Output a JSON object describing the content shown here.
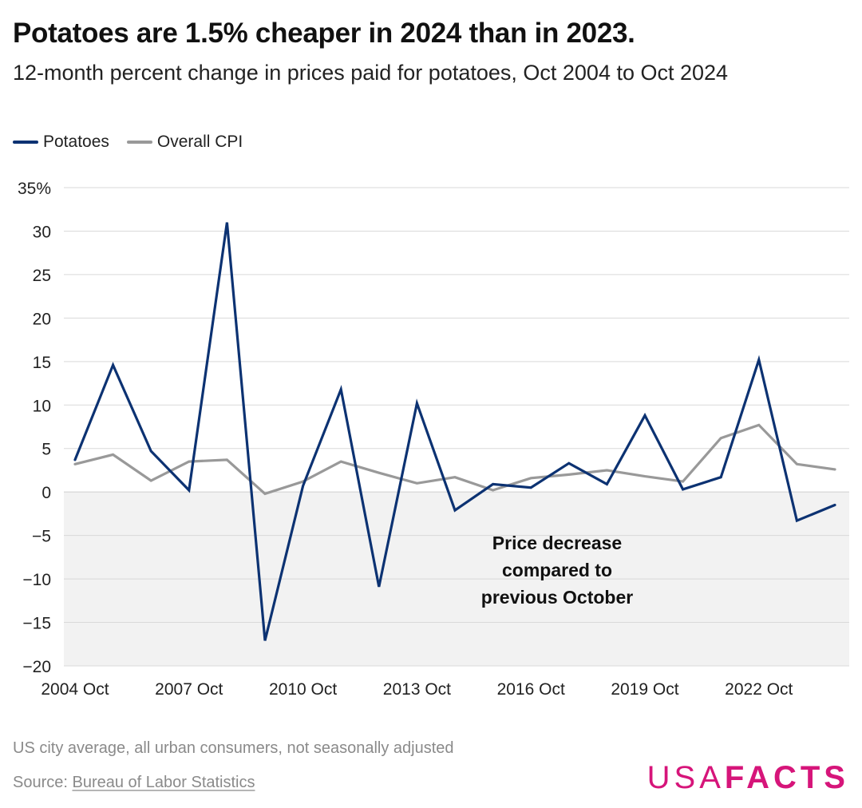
{
  "header": {
    "title": "Potatoes are 1.5% cheaper in 2024 than in 2023.",
    "subtitle": "12-month percent change in prices paid for potatoes, Oct 2004 to Oct 2024"
  },
  "legend": [
    {
      "label": "Potatoes",
      "color": "#0c3272"
    },
    {
      "label": "Overall CPI",
      "color": "#999999"
    }
  ],
  "annotation": {
    "lines": [
      "Price decrease",
      "compared to",
      "previous October"
    ]
  },
  "footnote": "US city average, all urban consumers, not seasonally adjusted",
  "source": {
    "prefix": "Source: ",
    "link_text": "Bureau of Labor Statistics"
  },
  "brand": {
    "part1": "USA",
    "part2": "FACTS",
    "color": "#d6157a"
  },
  "chart_data": {
    "type": "line",
    "x": [
      "2004 Oct",
      "2005 Oct",
      "2006 Oct",
      "2007 Oct",
      "2008 Oct",
      "2009 Oct",
      "2010 Oct",
      "2011 Oct",
      "2012 Oct",
      "2013 Oct",
      "2014 Oct",
      "2015 Oct",
      "2016 Oct",
      "2017 Oct",
      "2018 Oct",
      "2019 Oct",
      "2020 Oct",
      "2021 Oct",
      "2022 Oct",
      "2023 Oct",
      "2024 Oct"
    ],
    "x_tick_labels": [
      "2004 Oct",
      "2007 Oct",
      "2010 Oct",
      "2013 Oct",
      "2016 Oct",
      "2019 Oct",
      "2022 Oct"
    ],
    "x_tick_indices": [
      0,
      3,
      6,
      9,
      12,
      15,
      18
    ],
    "series": [
      {
        "name": "Potatoes",
        "color": "#0c3272",
        "values": [
          3.7,
          14.6,
          4.7,
          0.2,
          31.0,
          -17.1,
          0.7,
          11.8,
          -10.9,
          10.2,
          -2.1,
          0.9,
          0.5,
          3.3,
          0.9,
          8.8,
          0.3,
          1.7,
          15.2,
          -3.3,
          -1.5
        ]
      },
      {
        "name": "Overall CPI",
        "color": "#999999",
        "values": [
          3.2,
          4.3,
          1.3,
          3.5,
          3.7,
          -0.2,
          1.2,
          3.5,
          2.2,
          1.0,
          1.7,
          0.2,
          1.6,
          2.0,
          2.5,
          1.8,
          1.2,
          6.2,
          7.7,
          3.2,
          2.6
        ]
      }
    ],
    "y_ticks": [
      35,
      30,
      25,
      20,
      15,
      10,
      5,
      0,
      -5,
      -10,
      -15,
      -20
    ],
    "y_tick_labels": [
      "35%",
      "30",
      "25",
      "20",
      "15",
      "10",
      "5",
      "0",
      "−5",
      "−10",
      "−15",
      "−20"
    ],
    "ylim": [
      -20,
      35
    ],
    "negative_region_color": "#f2f2f2",
    "grid": true,
    "legend_position": "top-left"
  }
}
